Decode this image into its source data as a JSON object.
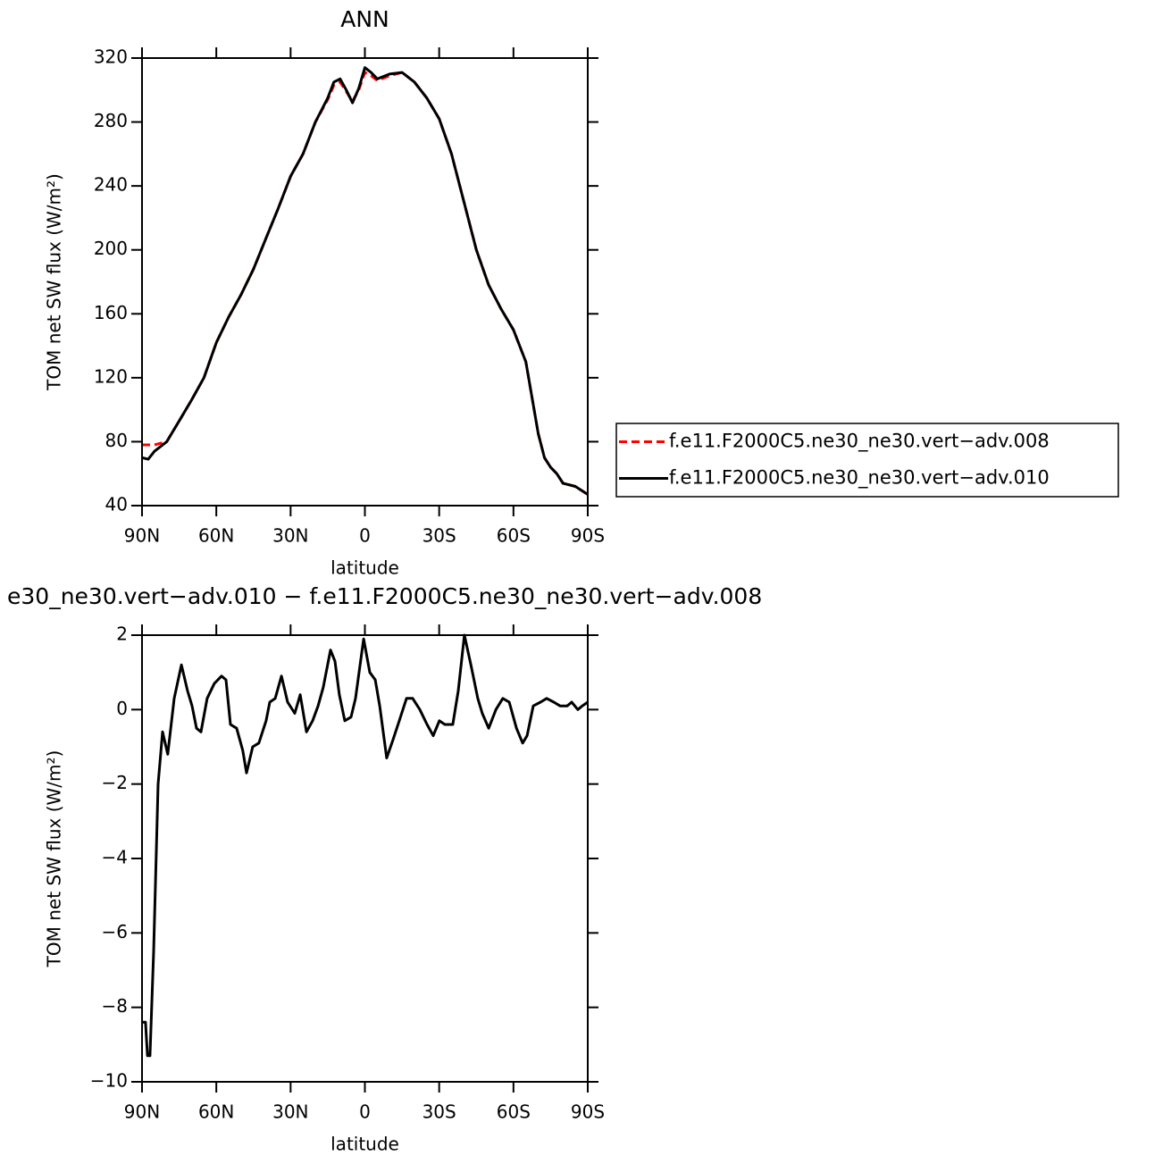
{
  "chart_data": [
    {
      "type": "line",
      "title": "ANN",
      "ylabel": "TOM net SW flux (W/m²)",
      "xlabel": "latitude",
      "x": [
        90,
        87.5,
        85,
        82.5,
        80,
        75,
        70,
        65,
        60,
        55,
        50,
        45,
        40,
        35,
        30,
        25,
        20,
        15,
        12.5,
        10,
        7.5,
        5,
        2.5,
        0,
        -2.5,
        -5,
        -10,
        -15,
        -20,
        -25,
        -30,
        -35,
        -40,
        -45,
        -50,
        -55,
        -60,
        -65,
        -70,
        -72.5,
        -75,
        -77.5,
        -80,
        -85,
        -90
      ],
      "series": [
        {
          "name": "f.e11.F2000C5.ne30_ne30.vert−adv.008",
          "color": "#ff0000",
          "dashed": true,
          "values": [
            78,
            78,
            78,
            79,
            80,
            93,
            106,
            120,
            142,
            158,
            172,
            188,
            207,
            226,
            246,
            260,
            280,
            294,
            303,
            305,
            299,
            293,
            300,
            311,
            309,
            306,
            309,
            311,
            305,
            295,
            282,
            260,
            230,
            200,
            178,
            163,
            150,
            130,
            85,
            70,
            64,
            60,
            54,
            52,
            47
          ]
        },
        {
          "name": "f.e11.F2000C5.ne30_ne30.vert−adv.010",
          "color": "#000000",
          "dashed": false,
          "values": [
            70,
            69,
            74,
            77,
            80,
            93,
            106,
            120,
            142,
            158,
            172,
            188,
            207,
            226,
            246,
            260,
            280,
            295,
            305,
            307,
            300,
            292,
            301,
            314,
            311,
            307,
            310,
            311,
            305,
            295,
            282,
            260,
            230,
            200,
            178,
            163,
            150,
            130,
            85,
            70,
            64,
            60,
            54,
            52,
            47
          ]
        }
      ],
      "xlim": [
        90,
        -90
      ],
      "xticks": [
        {
          "value": 90,
          "label": "90N"
        },
        {
          "value": 60,
          "label": "60N"
        },
        {
          "value": 30,
          "label": "30N"
        },
        0,
        {
          "value": -30,
          "label": "30S"
        },
        {
          "value": -60,
          "label": "60S"
        },
        {
          "value": -90,
          "label": "90S"
        }
      ],
      "ylim": [
        40,
        320
      ],
      "yticks": [
        40,
        80,
        120,
        160,
        200,
        240,
        280,
        320
      ],
      "legend": "right"
    },
    {
      "type": "line",
      "title": "e30_ne30.vert−adv.010 − f.e11.F2000C5.ne30_ne30.vert−adv.008",
      "ylabel": "TOM net SW flux (W/m²)",
      "xlabel": "latitude",
      "x": [
        90,
        88.6,
        87.8,
        86.8,
        85.3,
        83.5,
        81.7,
        79.6,
        77.0,
        74.1,
        71.6,
        69.8,
        68.0,
        66.2,
        63.7,
        60.8,
        57.9,
        56.1,
        54.3,
        51.8,
        49.3,
        47.8,
        45.3,
        42.8,
        39.9,
        38.4,
        36.2,
        33.7,
        31.2,
        28.3,
        26.1,
        23.6,
        21.1,
        18.9,
        16.8,
        13.9,
        12.1,
        10.3,
        8.1,
        5.6,
        3.8,
        0.5,
        -2.0,
        -4.2,
        -6.0,
        -8.8,
        -11.4,
        -13.9,
        -16.8,
        -19.3,
        -22.2,
        -25.1,
        -27.6,
        -30.1,
        -32.3,
        -35.5,
        -37.7,
        -40.2,
        -42.8,
        -45.6,
        -47.4,
        -50.0,
        -52.9,
        -55.7,
        -58.3,
        -61.2,
        -63.7,
        -65.5,
        -68.0,
        -70.9,
        -73.4,
        -76.3,
        -78.8,
        -81.7,
        -83.5,
        -86.0,
        -87.8,
        -90
      ],
      "series": [
        {
          "color": "#000000",
          "dashed": false,
          "values": [
            -8.4,
            -8.4,
            -9.3,
            -9.3,
            -6.5,
            -2,
            -0.6,
            -1.2,
            0.3,
            1.2,
            0.5,
            0.1,
            -0.5,
            -0.6,
            0.3,
            0.7,
            0.9,
            0.8,
            -0.4,
            -0.5,
            -1.1,
            -1.7,
            -1,
            -0.9,
            -0.3,
            0.2,
            0.3,
            0.9,
            0.2,
            -0.1,
            0.4,
            -0.6,
            -0.3,
            0.1,
            0.6,
            1.6,
            1.3,
            0.4,
            -0.3,
            -0.2,
            0.3,
            1.9,
            1.0,
            0.8,
            0.1,
            -1.3,
            -0.8,
            -0.3,
            0.3,
            0.3,
            0.0,
            -0.4,
            -0.7,
            -0.3,
            -0.4,
            -0.4,
            0.5,
            2.0,
            1.2,
            0.3,
            -0.1,
            -0.5,
            0.0,
            0.3,
            0.2,
            -0.5,
            -0.9,
            -0.7,
            0.1,
            0.2,
            0.3,
            0.2,
            0.1,
            0.1,
            0.2,
            0,
            0.1,
            0.2
          ]
        }
      ],
      "xlim": [
        90,
        -90
      ],
      "xticks": [
        {
          "value": 90,
          "label": "90N"
        },
        {
          "value": 60,
          "label": "60N"
        },
        {
          "value": 30,
          "label": "30N"
        },
        0,
        {
          "value": -30,
          "label": "30S"
        },
        {
          "value": -60,
          "label": "60S"
        },
        {
          "value": -90,
          "label": "90S"
        }
      ],
      "ylim": [
        -10,
        2
      ],
      "yticks": [
        {
          "value": -10,
          "label": "−10"
        },
        {
          "value": -8,
          "label": "−8"
        },
        {
          "value": -6,
          "label": "−6"
        },
        {
          "value": -4,
          "label": "−4"
        },
        {
          "value": -2,
          "label": "−2"
        },
        0,
        2
      ]
    }
  ]
}
